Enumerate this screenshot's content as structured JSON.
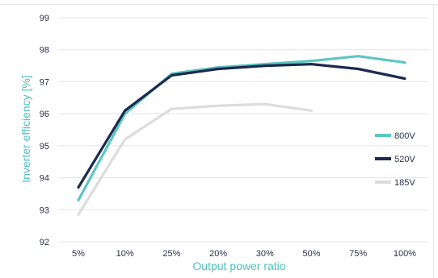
{
  "chart_data": {
    "type": "line",
    "xlabel": "Output power ratio",
    "ylabel": "Inverter efficiency [%]",
    "categories": [
      "5%",
      "10%",
      "25%",
      "20%",
      "30%",
      "50%",
      "75%",
      "100%"
    ],
    "ylim": [
      92,
      99
    ],
    "yticks": [
      92,
      93,
      94,
      95,
      96,
      97,
      98,
      99
    ],
    "grid": "horizontal",
    "legend_position": "right",
    "series": [
      {
        "name": "800V",
        "color": "#5cc6c3",
        "values": [
          93.3,
          96.0,
          97.25,
          97.45,
          97.55,
          97.65,
          97.8,
          97.6
        ]
      },
      {
        "name": "520V",
        "color": "#1b2a4e",
        "values": [
          93.7,
          96.1,
          97.2,
          97.4,
          97.5,
          97.55,
          97.4,
          97.1
        ]
      },
      {
        "name": "185V",
        "color": "#dcdcdc",
        "values": [
          92.85,
          95.2,
          96.15,
          96.25,
          96.3,
          96.1,
          null,
          null
        ]
      }
    ]
  }
}
